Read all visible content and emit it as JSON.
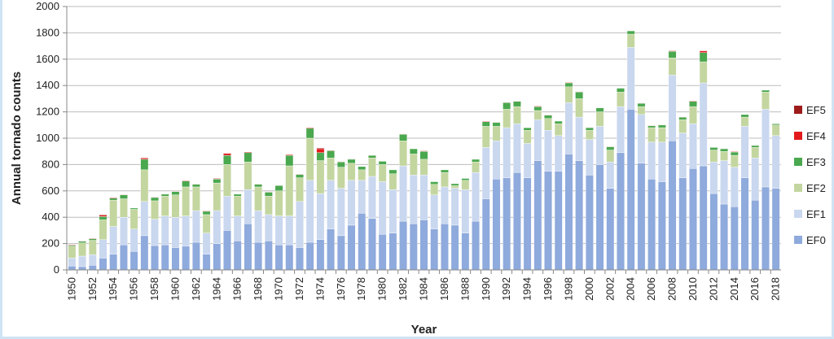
{
  "chart_data": {
    "type": "bar",
    "stacked": true,
    "xlabel": "Year",
    "ylabel": "Annual tornado counts",
    "ylim": [
      0,
      2000
    ],
    "yticks": [
      0,
      200,
      400,
      600,
      800,
      1000,
      1200,
      1400,
      1600,
      1800,
      2000
    ],
    "grid": true,
    "legend_position": "right",
    "categories": [
      1950,
      1951,
      1952,
      1953,
      1954,
      1955,
      1956,
      1957,
      1958,
      1959,
      1960,
      1961,
      1962,
      1963,
      1964,
      1965,
      1966,
      1967,
      1968,
      1969,
      1970,
      1971,
      1972,
      1973,
      1974,
      1975,
      1976,
      1977,
      1978,
      1979,
      1980,
      1981,
      1982,
      1983,
      1984,
      1985,
      1986,
      1987,
      1988,
      1989,
      1990,
      1991,
      1992,
      1993,
      1994,
      1995,
      1996,
      1997,
      1998,
      1999,
      2000,
      2001,
      2002,
      2003,
      2004,
      2005,
      2006,
      2007,
      2008,
      2009,
      2010,
      2011,
      2012,
      2013,
      2014,
      2015,
      2016,
      2017,
      2018
    ],
    "xtick_labels": [
      "1950",
      "1952",
      "1954",
      "1956",
      "1958",
      "1960",
      "1962",
      "1964",
      "1966",
      "1968",
      "1970",
      "1972",
      "1974",
      "1976",
      "1978",
      "1980",
      "1982",
      "1984",
      "1986",
      "1988",
      "1990",
      "1992",
      "1994",
      "1996",
      "1998",
      "2000",
      "2002",
      "2004",
      "2006",
      "2008",
      "2010",
      "2012",
      "2014",
      "2016",
      "2018"
    ],
    "series": [
      {
        "name": "EF0",
        "color": "#8faadc",
        "values": [
          30,
          25,
          35,
          90,
          120,
          190,
          140,
          260,
          185,
          190,
          170,
          180,
          210,
          120,
          200,
          300,
          220,
          350,
          210,
          220,
          190,
          190,
          170,
          210,
          230,
          310,
          260,
          340,
          430,
          390,
          270,
          280,
          370,
          350,
          380,
          310,
          350,
          340,
          280,
          370,
          540,
          690,
          700,
          740,
          700,
          830,
          750,
          750,
          880,
          830,
          720,
          800,
          620,
          890,
          1220,
          810,
          690,
          670,
          980,
          700,
          770,
          790,
          580,
          500,
          480,
          700,
          530,
          630,
          620
        ]
      },
      {
        "name": "EF1",
        "color": "#c9d7ef",
        "values": [
          60,
          80,
          80,
          140,
          210,
          210,
          170,
          260,
          200,
          220,
          230,
          230,
          240,
          160,
          250,
          260,
          190,
          260,
          240,
          200,
          220,
          220,
          350,
          470,
          350,
          370,
          360,
          340,
          250,
          320,
          400,
          330,
          420,
          370,
          340,
          260,
          280,
          280,
          330,
          370,
          390,
          290,
          380,
          370,
          260,
          310,
          310,
          270,
          390,
          330,
          270,
          290,
          200,
          350,
          470,
          370,
          280,
          300,
          500,
          340,
          340,
          630,
          240,
          330,
          300,
          390,
          320,
          590,
          400
        ]
      },
      {
        "name": "EF2",
        "color": "#c4d6a0",
        "values": [
          90,
          100,
          110,
          150,
          200,
          140,
          150,
          240,
          140,
          150,
          170,
          220,
          180,
          140,
          210,
          240,
          150,
          210,
          180,
          140,
          190,
          380,
          180,
          320,
          250,
          170,
          160,
          130,
          80,
          140,
          130,
          120,
          190,
          160,
          120,
          80,
          110,
          20,
          70,
          80,
          160,
          110,
          140,
          130,
          100,
          70,
          90,
          90,
          120,
          140,
          70,
          110,
          90,
          110,
          100,
          60,
          110,
          110,
          130,
          100,
          130,
          160,
          90,
          70,
          90,
          70,
          80,
          130,
          80
        ]
      },
      {
        "name": "EF3",
        "color": "#4aa84e",
        "values": [
          8,
          12,
          12,
          25,
          15,
          30,
          10,
          80,
          25,
          15,
          25,
          45,
          20,
          25,
          30,
          70,
          15,
          70,
          20,
          30,
          40,
          80,
          25,
          75,
          60,
          55,
          40,
          30,
          25,
          20,
          25,
          30,
          50,
          40,
          60,
          20,
          20,
          15,
          15,
          20,
          35,
          30,
          50,
          40,
          20,
          30,
          25,
          20,
          30,
          50,
          20,
          30,
          25,
          30,
          25,
          25,
          15,
          20,
          50,
          20,
          40,
          70,
          20,
          20,
          25,
          20,
          15,
          15,
          10
        ]
      },
      {
        "name": "EF4",
        "color": "#e31a1c",
        "values": [
          4,
          3,
          4,
          10,
          5,
          3,
          2,
          10,
          3,
          3,
          3,
          4,
          2,
          4,
          5,
          15,
          2,
          6,
          2,
          3,
          3,
          6,
          3,
          6,
          30,
          4,
          3,
          2,
          2,
          2,
          2,
          2,
          3,
          2,
          4,
          2,
          2,
          1,
          1,
          2,
          5,
          2,
          3,
          2,
          2,
          4,
          2,
          2,
          4,
          4,
          1,
          1,
          1,
          2,
          1,
          1,
          1,
          2,
          4,
          1,
          4,
          12,
          2,
          1,
          4,
          2,
          1,
          2,
          1
        ]
      },
      {
        "name": "EF5",
        "color": "#9e1b1b",
        "values": [
          0,
          0,
          2,
          5,
          1,
          0,
          0,
          2,
          0,
          1,
          0,
          0,
          0,
          0,
          1,
          2,
          0,
          1,
          0,
          0,
          1,
          0,
          0,
          1,
          6,
          0,
          0,
          1,
          0,
          0,
          0,
          0,
          0,
          0,
          0,
          0,
          0,
          0,
          0,
          0,
          1,
          1,
          0,
          0,
          0,
          0,
          0,
          0,
          1,
          1,
          0,
          0,
          0,
          0,
          0,
          0,
          0,
          1,
          0,
          0,
          0,
          4,
          0,
          1,
          0,
          0,
          0,
          0,
          0
        ]
      }
    ]
  }
}
